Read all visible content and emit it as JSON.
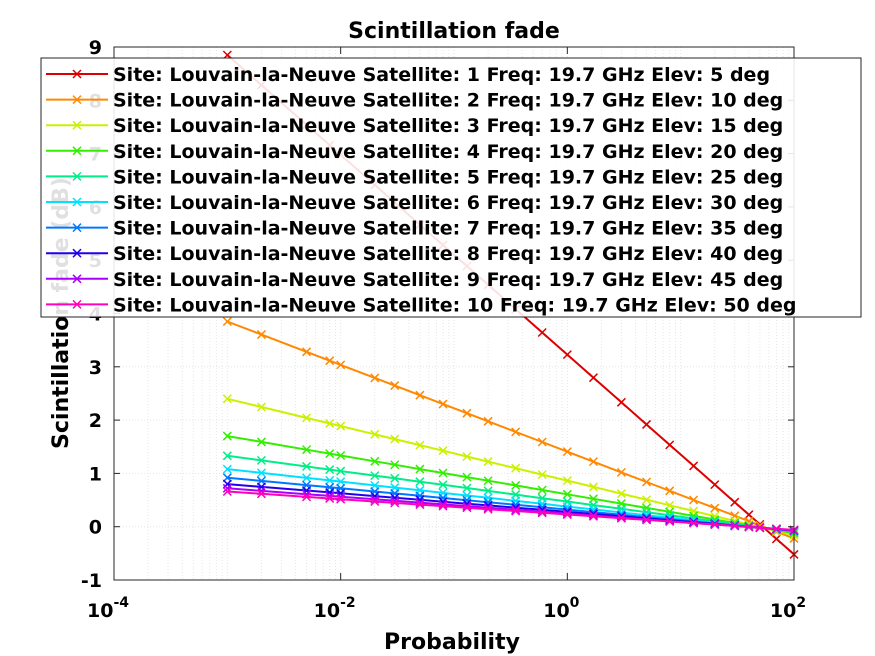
{
  "chart_data": {
    "type": "line",
    "title": "Scintillation fade",
    "xlabel": "Probability",
    "ylabel": "Scintillation fade (dB)",
    "x_scale": "log",
    "xlim": [
      0.0001,
      100
    ],
    "ylim": [
      -1,
      9
    ],
    "x_ticks": [
      {
        "value": 0.0001,
        "base": "10",
        "exp": "-4"
      },
      {
        "value": 0.01,
        "base": "10",
        "exp": "-2"
      },
      {
        "value": 1,
        "base": "10",
        "exp": "0"
      },
      {
        "value": 100,
        "base": "10",
        "exp": "2"
      }
    ],
    "y_ticks": [
      "-1",
      "0",
      "1",
      "2",
      "3",
      "4",
      "5",
      "6",
      "7",
      "8",
      "9"
    ],
    "grid": true,
    "legend_position": "top",
    "marker": "x",
    "x": [
      0.001,
      0.002,
      0.005,
      0.008,
      0.01,
      0.02,
      0.03,
      0.05,
      0.08,
      0.13,
      0.2,
      0.35,
      0.6,
      1,
      1.7,
      3,
      5,
      8,
      13,
      20,
      30,
      40,
      50,
      70,
      100
    ],
    "series": [
      {
        "name": "Site: Louvain-la-Neuve Satellite: 1 Freq: 19.7 GHz Elev: 5 deg",
        "color": "#dd0000",
        "endpoints": [
          8.85,
          -0.52
        ]
      },
      {
        "name": "Site: Louvain-la-Neuve Satellite: 2 Freq: 19.7 GHz Elev: 10 deg",
        "color": "#ff8800",
        "endpoints": [
          3.85,
          -0.22
        ]
      },
      {
        "name": "Site: Louvain-la-Neuve Satellite: 3 Freq: 19.7 GHz Elev: 15 deg",
        "color": "#ccf000",
        "endpoints": [
          2.4,
          -0.16
        ]
      },
      {
        "name": "Site: Louvain-la-Neuve Satellite: 4 Freq: 19.7 GHz Elev: 20 deg",
        "color": "#33ee00",
        "endpoints": [
          1.7,
          -0.12
        ]
      },
      {
        "name": "Site: Louvain-la-Neuve Satellite: 5 Freq: 19.7 GHz Elev: 25 deg",
        "color": "#00ee88",
        "endpoints": [
          1.33,
          -0.1
        ]
      },
      {
        "name": "Site: Louvain-la-Neuve Satellite: 6 Freq: 19.7 GHz Elev: 30 deg",
        "color": "#00e0ff",
        "endpoints": [
          1.08,
          -0.09
        ]
      },
      {
        "name": "Site: Louvain-la-Neuve Satellite: 7 Freq: 19.7 GHz Elev: 35 deg",
        "color": "#0077ff",
        "endpoints": [
          0.92,
          -0.08
        ]
      },
      {
        "name": "Site: Louvain-la-Neuve Satellite: 8 Freq: 19.7 GHz Elev: 40 deg",
        "color": "#2200ee",
        "endpoints": [
          0.8,
          -0.07
        ]
      },
      {
        "name": "Site: Louvain-la-Neuve Satellite: 9 Freq: 19.7 GHz Elev: 45 deg",
        "color": "#aa00ff",
        "endpoints": [
          0.72,
          -0.07
        ]
      },
      {
        "name": "Site: Louvain-la-Neuve Satellite: 10 Freq: 19.7 GHz Elev: 50 deg",
        "color": "#ff00bb",
        "endpoints": [
          0.66,
          -0.06
        ]
      }
    ]
  }
}
